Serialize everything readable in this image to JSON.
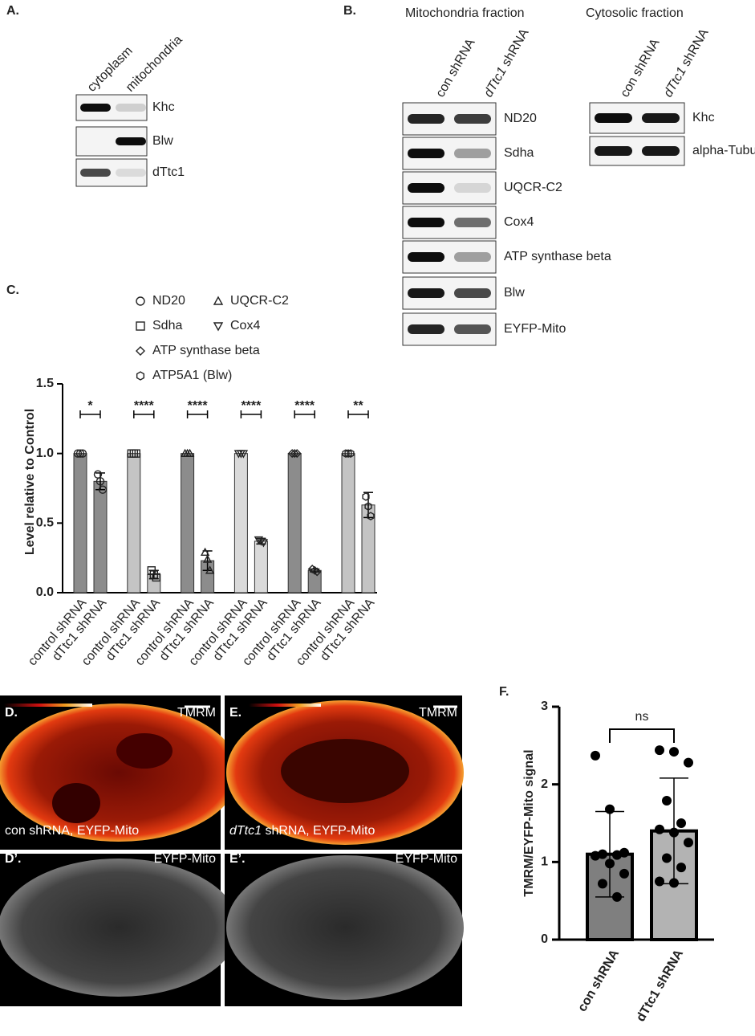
{
  "panel_a": {
    "label": "A.",
    "columns": [
      "cytoplasm",
      "mitochondria"
    ],
    "rows": [
      "Khc",
      "Blw",
      "dTtc1"
    ]
  },
  "panel_b": {
    "label": "B.",
    "mitochondria": {
      "title": "Mitochondria fraction",
      "columns": [
        "con shRNA",
        "dTtc1 shRNA"
      ],
      "rows": [
        "ND20",
        "Sdha",
        "UQCR-C2",
        "Cox4",
        "ATP synthase beta",
        "Blw",
        "EYFP-Mito"
      ]
    },
    "cytosol": {
      "title": "Cytosolic fraction",
      "columns": [
        "con shRNA",
        "dTtc1 shRNA"
      ],
      "rows": [
        "Khc",
        "alpha-Tubulin"
      ]
    }
  },
  "chart_data": [
    {
      "label": "C.",
      "type": "bar",
      "ylabel": "Level relative to Control",
      "groups": [
        {
          "name": "ND20",
          "marker": "circle",
          "color": "#8c8c8c"
        },
        {
          "name": "Sdha",
          "marker": "square",
          "color": "#c4c4c4"
        },
        {
          "name": "UQCR-C2",
          "marker": "triangle",
          "color": "#8c8c8c"
        },
        {
          "name": "Cox4",
          "marker": "triangle-down",
          "color": "#dadada"
        },
        {
          "name": "ATP synthase beta",
          "marker": "diamond",
          "color": "#8c8c8c"
        },
        {
          "name": "ATP5A1 (Blw)",
          "marker": "hexagon",
          "color": "#c4c4c4"
        }
      ],
      "categories": [
        "control shRNA",
        "dTtc1 shRNA",
        "control shRNA",
        "dTtc1 shRNA",
        "control shRNA",
        "dTtc1 shRNA",
        "control shRNA",
        "dTtc1 shRNA",
        "control shRNA",
        "dTtc1 shRNA",
        "control shRNA",
        "dTtc1 shRNA"
      ],
      "values": [
        1,
        0.8,
        1,
        0.13,
        1,
        0.23,
        1,
        0.37,
        1,
        0.16,
        1,
        0.63
      ],
      "errors": [
        0,
        0.06,
        0,
        0.03,
        0,
        0.07,
        0,
        0.02,
        0,
        0.01,
        0,
        0.09
      ],
      "points": [
        [
          1,
          1,
          1
        ],
        [
          0.85,
          0.8,
          0.74
        ],
        [
          1,
          1,
          1
        ],
        [
          0.16,
          0.13,
          0.11
        ],
        [
          1,
          1,
          1
        ],
        [
          0.29,
          0.24,
          0.16
        ],
        [
          1,
          1,
          1
        ],
        [
          0.38,
          0.37,
          0.36
        ],
        [
          1,
          1,
          1
        ],
        [
          0.17,
          0.16,
          0.15
        ],
        [
          1,
          1,
          1
        ],
        [
          0.69,
          0.62,
          0.55
        ]
      ],
      "significance": [
        "*",
        "****",
        "****",
        "****",
        "****",
        "**"
      ],
      "ylim": [
        0,
        1.5
      ],
      "yticks": [
        {
          "value": 0,
          "label": "0.0"
        },
        0.5,
        {
          "value": 1,
          "label": "1.0"
        },
        1.5
      ]
    },
    {
      "label": "F.",
      "type": "bar",
      "ylabel": "TMRM/EYFP-Mito signal",
      "categories": [
        "con shRNA",
        "dTtc1 shRNA"
      ],
      "values": [
        1.1,
        1.4
      ],
      "errors": [
        0.55,
        0.68
      ],
      "colors": [
        "#7f7f7f",
        "#b3b3b3"
      ],
      "points": [
        [
          2.37,
          1.68,
          1.12,
          1.1,
          1.09,
          1.08,
          0.98,
          0.85,
          0.72,
          0.55
        ],
        [
          2.44,
          2.42,
          2.28,
          1.79,
          1.5,
          1.42,
          1.38,
          1.25,
          1.05,
          0.93,
          0.75,
          0.73
        ]
      ],
      "annotation": "ns",
      "ylim": [
        0,
        3
      ],
      "yticks": [
        0,
        1,
        2,
        3
      ]
    }
  ],
  "panel_d": {
    "label": "D.",
    "channel": "TMRM",
    "caption": "con shRNA, EYFP-Mito",
    "label2": "D’.",
    "channel2": "EYFP-Mito"
  },
  "panel_e": {
    "label": "E.",
    "channel": "TMRM",
    "caption": "dTtc1 shRNA, EYFP-Mito",
    "label2": "E’.",
    "channel2": "EYFP-Mito"
  }
}
